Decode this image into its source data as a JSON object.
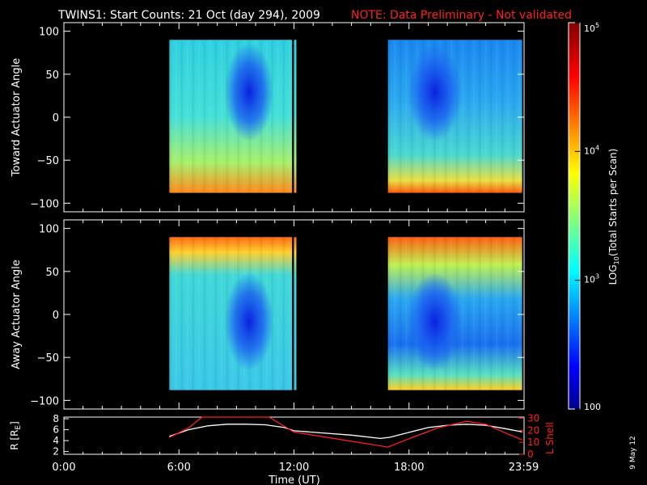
{
  "header": {
    "title": "TWINS1: Start Counts: 21 Oct (day 294), 2009",
    "note": "NOTE: Data Preliminary - Not validated",
    "note_color": "#ff2020"
  },
  "chart_data": [
    {
      "type": "heatmap",
      "ylabel": "Toward Actuator Angle",
      "yticks": [
        "100",
        "50",
        "0",
        "−50",
        "−100"
      ],
      "ytick_values": [
        100,
        50,
        0,
        -50,
        -100
      ],
      "xlim": [
        0,
        24
      ],
      "ylim": [
        -110,
        110
      ],
      "data_extent": {
        "y": [
          -88,
          90
        ]
      },
      "segments_hours": [
        [
          5.5,
          11.9
        ],
        [
          12.0,
          12.05
        ],
        [
          16.9,
          23.9
        ]
      ]
    },
    {
      "type": "heatmap",
      "ylabel": "Away Actuator Angle",
      "yticks": [
        "100",
        "50",
        "0",
        "−50",
        "−100"
      ],
      "ytick_values": [
        100,
        50,
        0,
        -50,
        -100
      ],
      "xlim": [
        0,
        24
      ],
      "ylim": [
        -110,
        110
      ],
      "data_extent": {
        "y": [
          -88,
          90
        ]
      },
      "segments_hours": [
        [
          5.5,
          11.9
        ],
        [
          12.0,
          12.05
        ],
        [
          16.9,
          23.9
        ]
      ]
    },
    {
      "type": "line",
      "ylabel_left": "R [R",
      "ylabel_left_sub": "E",
      "ylabel_left_end": "]",
      "ylabel_right": "L Shell",
      "left_ticks": [
        "8",
        "6",
        "4",
        "2"
      ],
      "left_tick_values": [
        8,
        6,
        4,
        2
      ],
      "right_ticks": [
        "30",
        "20",
        "10",
        "0"
      ],
      "right_tick_values": [
        30,
        20,
        10,
        0
      ],
      "left_ylim": [
        1.5,
        8.3
      ],
      "right_ylim": [
        0,
        31
      ],
      "series": [
        {
          "axis": "left",
          "color": "#ffffff",
          "x": [
            5.5,
            6.5,
            7.5,
            8.5,
            9.5,
            10.5,
            11.5,
            12.0,
            13.5,
            15.0,
            16.5,
            17.0,
            18.0,
            19.0,
            20.0,
            21.0,
            22.0,
            23.0,
            23.9
          ],
          "y": [
            4.8,
            6.0,
            6.7,
            7.0,
            7.0,
            6.9,
            6.4,
            5.8,
            5.4,
            5.0,
            4.4,
            4.6,
            5.5,
            6.4,
            6.8,
            7.0,
            6.8,
            6.2,
            5.6
          ]
        },
        {
          "axis": "right",
          "color": "#ff2020",
          "x": [
            5.5,
            6.5,
            7.2,
            10.7,
            12.0,
            16.9,
            18.0,
            19.5,
            21.0,
            22.0,
            23.0,
            23.9
          ],
          "y": [
            14.0,
            22.0,
            31.0,
            31.0,
            18.5,
            6.0,
            13.0,
            22.0,
            27.5,
            25.0,
            18.0,
            12.0
          ]
        }
      ]
    }
  ],
  "x_axis": {
    "ticks": [
      "0:00",
      "6:00",
      "12:00",
      "18:00",
      "23:59"
    ],
    "tick_values": [
      0,
      6,
      12,
      18,
      23.98
    ],
    "label": "Time (UT)"
  },
  "colorbar": {
    "label_prefix": "LOG",
    "label_sub": "10",
    "label_rest": "(Total Starts per Scan)",
    "ticks": [
      {
        "base": "10",
        "exp": "5",
        "value": 100000
      },
      {
        "base": "10",
        "exp": "4",
        "value": 10000
      },
      {
        "base": "10",
        "exp": "3",
        "value": 1000
      },
      {
        "base": "100",
        "exp": "",
        "value": 100
      }
    ],
    "range": [
      100,
      100000
    ],
    "scale": "log"
  },
  "stamp": "9 May 12"
}
